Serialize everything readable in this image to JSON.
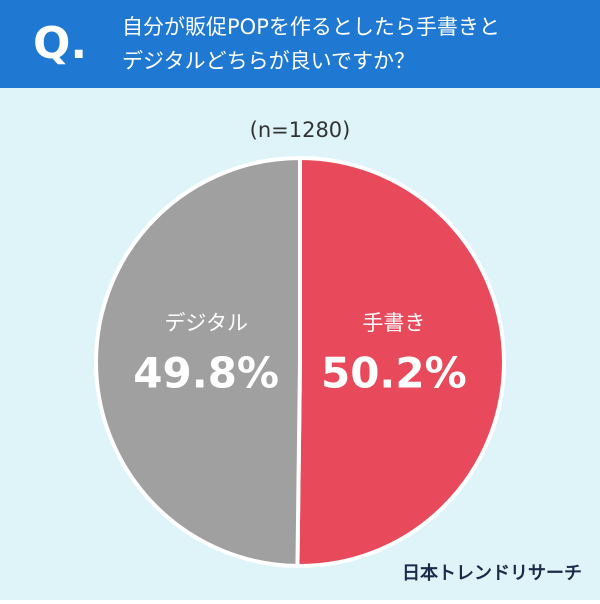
{
  "chart_data": {
    "type": "pie",
    "question_mark": "Q.",
    "title": [
      "自分が販促POPを作るとしたら手書きと",
      "デジタルどちらが良いですか？"
    ],
    "subtitle": "(n=1280)",
    "categories": [
      "手書き",
      "デジタル"
    ],
    "values": [
      50.2,
      49.8
    ],
    "value_labels": [
      "50.2%",
      "49.8%"
    ],
    "colors": [
      "#e84a5c",
      "#a0a0a0"
    ],
    "source": "日本トレンドリサーチ"
  }
}
